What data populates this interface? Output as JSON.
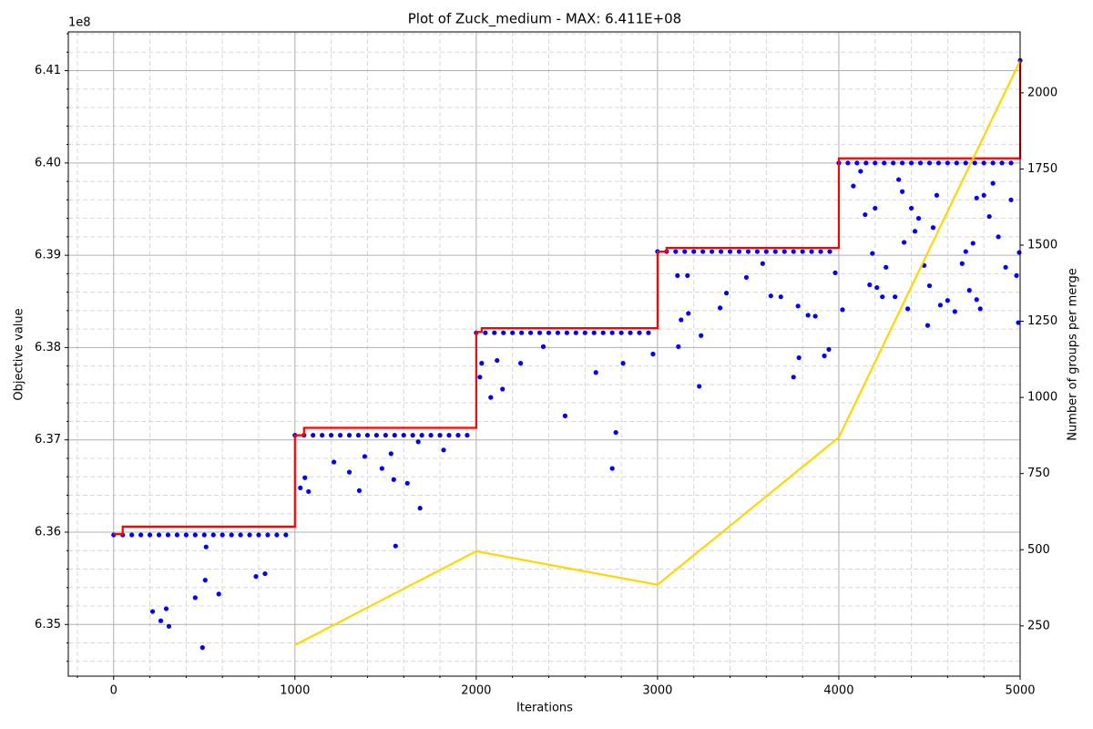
{
  "chart_data": {
    "type": "combo",
    "title": "Plot of Zuck_medium - MAX: 6.411E+08",
    "x_label": "Iterations",
    "y_label": "Objective value",
    "y2_label": "Number of groups per merge",
    "y_offset_label": "1e8",
    "xlim": [
      -250,
      5000
    ],
    "ylim": [
      6.3444,
      6.4142
    ],
    "y2lim": [
      85,
      2200
    ],
    "xticks": [
      0,
      1000,
      2000,
      3000,
      4000,
      5000
    ],
    "yticks": [
      6.35,
      6.36,
      6.37,
      6.38,
      6.39,
      {
        "value": 6.4,
        "label": "6.40"
      },
      6.41
    ],
    "y2ticks": [
      250,
      500,
      750,
      1000,
      1250,
      1500,
      1750,
      2000
    ],
    "grid": true,
    "minor_grid": true,
    "layers": [
      {
        "type": "scatter",
        "color": "#0000ff",
        "x": [
          0,
          50,
          100,
          150,
          200,
          250,
          300,
          350,
          400,
          450,
          500,
          550,
          600,
          650,
          700,
          750,
          800,
          850,
          900,
          950,
          1000,
          1050,
          1100,
          1150,
          1200,
          1250,
          1300,
          1350,
          1400,
          1450,
          1500,
          1550,
          1600,
          1650,
          1700,
          1750,
          1800,
          1850,
          1900,
          1950,
          2000,
          2050,
          2100,
          2150,
          2200,
          2250,
          2300,
          2350,
          2400,
          2450,
          2500,
          2550,
          2600,
          2650,
          2700,
          2750,
          2800,
          2850,
          2900,
          2950,
          3000,
          3050,
          3100,
          3150,
          3200,
          3250,
          3300,
          3350,
          3400,
          3450,
          3500,
          3550,
          3600,
          3650,
          3700,
          3750,
          3800,
          3850,
          3900,
          3950,
          4000,
          4050,
          4100,
          4150,
          4200,
          4250,
          4300,
          4350,
          4400,
          4450,
          4500,
          4550,
          4600,
          4650,
          4700,
          4750,
          4800,
          4850,
          4900,
          4950,
          5000,
          215,
          260,
          290,
          305,
          450,
          490,
          505,
          510,
          580,
          785,
          835,
          1030,
          1055,
          1075,
          1215,
          1300,
          1355,
          1385,
          1480,
          1530,
          1545,
          1555,
          1620,
          1690,
          1680,
          1820,
          2020,
          2030,
          2080,
          2115,
          2145,
          2245,
          2370,
          2490,
          2660,
          2750,
          2770,
          2810,
          2975,
          3110,
          3115,
          3130,
          3165,
          3170,
          3230,
          3240,
          3345,
          3380,
          3490,
          3580,
          3625,
          3680,
          3750,
          3775,
          3780,
          3830,
          3870,
          3920,
          3945,
          3980,
          4020,
          4080,
          4120,
          4145,
          4170,
          4185,
          4200,
          4210,
          4240,
          4260,
          4310,
          4330,
          4350,
          4360,
          4380,
          4400,
          4420,
          4440,
          4470,
          4490,
          4500,
          4520,
          4540,
          4560,
          4600,
          4640,
          4680,
          4700,
          4720,
          4740,
          4760,
          4780,
          4800,
          4830,
          4850,
          4880,
          4920,
          4950,
          4980,
          4990,
          4995,
          4760
        ],
        "y": [
          6.3597,
          6.3597,
          6.3597,
          6.3597,
          6.3597,
          6.3597,
          6.3597,
          6.3597,
          6.3597,
          6.3597,
          6.3597,
          6.3597,
          6.3597,
          6.3597,
          6.3597,
          6.3597,
          6.3597,
          6.3597,
          6.3597,
          6.3597,
          6.3705,
          6.3705,
          6.3705,
          6.3705,
          6.3705,
          6.3705,
          6.3705,
          6.3705,
          6.3705,
          6.3705,
          6.3705,
          6.3705,
          6.3705,
          6.3705,
          6.3705,
          6.3705,
          6.3705,
          6.3705,
          6.3705,
          6.3705,
          6.3816,
          6.3816,
          6.3816,
          6.3816,
          6.3816,
          6.3816,
          6.3816,
          6.3816,
          6.3816,
          6.3816,
          6.3816,
          6.3816,
          6.3816,
          6.3816,
          6.3816,
          6.3816,
          6.3816,
          6.3816,
          6.3816,
          6.3816,
          6.3904,
          6.3904,
          6.3904,
          6.3904,
          6.3904,
          6.3904,
          6.3904,
          6.3904,
          6.3904,
          6.3904,
          6.3904,
          6.3904,
          6.3904,
          6.3904,
          6.3904,
          6.3904,
          6.3904,
          6.3904,
          6.3904,
          6.3904,
          6.4,
          6.4,
          6.4,
          6.4,
          6.4,
          6.4,
          6.4,
          6.4,
          6.4,
          6.4,
          6.4,
          6.4,
          6.4,
          6.4,
          6.4,
          6.4,
          6.4,
          6.4,
          6.4,
          6.4,
          6.4111,
          6.3514,
          6.3504,
          6.3517,
          6.3498,
          6.3529,
          6.3475,
          6.3548,
          6.3584,
          6.3533,
          6.3552,
          6.3555,
          6.3648,
          6.3659,
          6.3644,
          6.3676,
          6.3665,
          6.3645,
          6.3682,
          6.3669,
          6.3685,
          6.3657,
          6.3585,
          6.3653,
          6.3626,
          6.3698,
          6.3689,
          6.3768,
          6.3783,
          6.3746,
          6.3786,
          6.3755,
          6.3783,
          6.3801,
          6.3726,
          6.3773,
          6.3669,
          6.3708,
          6.3783,
          6.3793,
          6.3878,
          6.3801,
          6.383,
          6.3878,
          6.3837,
          6.3758,
          6.3813,
          6.3843,
          6.3859,
          6.3876,
          6.3891,
          6.3856,
          6.3855,
          6.3768,
          6.3845,
          6.3789,
          6.3835,
          6.3834,
          6.3791,
          6.3798,
          6.3881,
          6.3841,
          6.3975,
          6.3991,
          6.3944,
          6.3868,
          6.3902,
          6.3951,
          6.3865,
          6.3855,
          6.3887,
          6.3855,
          6.3982,
          6.3969,
          6.3914,
          6.3842,
          6.3951,
          6.3926,
          6.394,
          6.3889,
          6.3824,
          6.3867,
          6.393,
          6.3965,
          6.3846,
          6.3851,
          6.3839,
          6.3891,
          6.3904,
          6.3862,
          6.3913,
          6.3852,
          6.3842,
          6.3965,
          6.3942,
          6.3978,
          6.392,
          6.3887,
          6.396,
          6.3878,
          6.3827,
          6.3903,
          6.3962
        ]
      },
      {
        "type": "line",
        "color": "#ff0000",
        "x": [
          0,
          50,
          50,
          1000,
          1000,
          1050,
          1050,
          2000,
          2000,
          2030,
          2030,
          3000,
          3000,
          3050,
          3050,
          4000,
          4000,
          5000,
          5000
        ],
        "y": [
          6.3598,
          6.3598,
          6.3606,
          6.3606,
          6.3705,
          6.3705,
          6.3713,
          6.3713,
          6.3817,
          6.3817,
          6.3821,
          6.3821,
          6.3904,
          6.3904,
          6.3908,
          6.3908,
          6.4005,
          6.4005,
          6.4111
        ]
      },
      {
        "type": "line",
        "axis": "y2",
        "color": "#ffd700",
        "x": [
          1000,
          2000,
          3000,
          4000,
          5000
        ],
        "y": [
          187,
          495,
          385,
          869,
          2105
        ]
      }
    ]
  }
}
